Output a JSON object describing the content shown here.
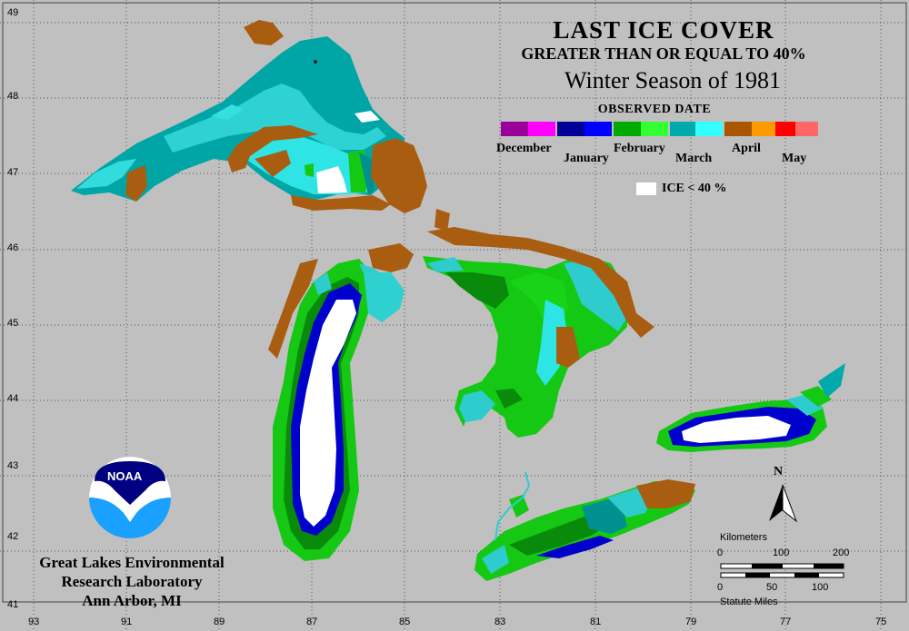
{
  "title": {
    "line1": "LAST ICE COVER",
    "line2": "GREATER THAN OR EQUAL TO 40%",
    "line3": "Winter Season of 1981"
  },
  "legend": {
    "title": "OBSERVED DATE",
    "months_top": [
      "December",
      "February",
      "April"
    ],
    "months_bottom": [
      "January",
      "March",
      "May"
    ],
    "colors": [
      "#990099",
      "#ff00ff",
      "#000099",
      "#0000ff",
      "#00aa00",
      "#33ff33",
      "#00aaaa",
      "#33ffff",
      "#aa5500",
      "#ff9900",
      "#ff0000",
      "#ff6666"
    ],
    "ice_label": "ICE < 40 %"
  },
  "axes": {
    "lat": [
      "49",
      "48",
      "47",
      "46",
      "45",
      "44",
      "43",
      "42",
      "41"
    ],
    "lon": [
      "93",
      "91",
      "89",
      "87",
      "85",
      "83",
      "81",
      "79",
      "77",
      "75"
    ]
  },
  "organization": {
    "logo_text": "NOAA",
    "line1": "Great Lakes Environmental",
    "line2": "Research Laboratory",
    "line3": "Ann Arbor, MI"
  },
  "scale": {
    "km_label": "Kilometers",
    "km_ticks": [
      "0",
      "100",
      "200"
    ],
    "mi_ticks": [
      "0",
      "50",
      "100"
    ],
    "mi_label": "Statute Miles"
  },
  "north_label": "N"
}
